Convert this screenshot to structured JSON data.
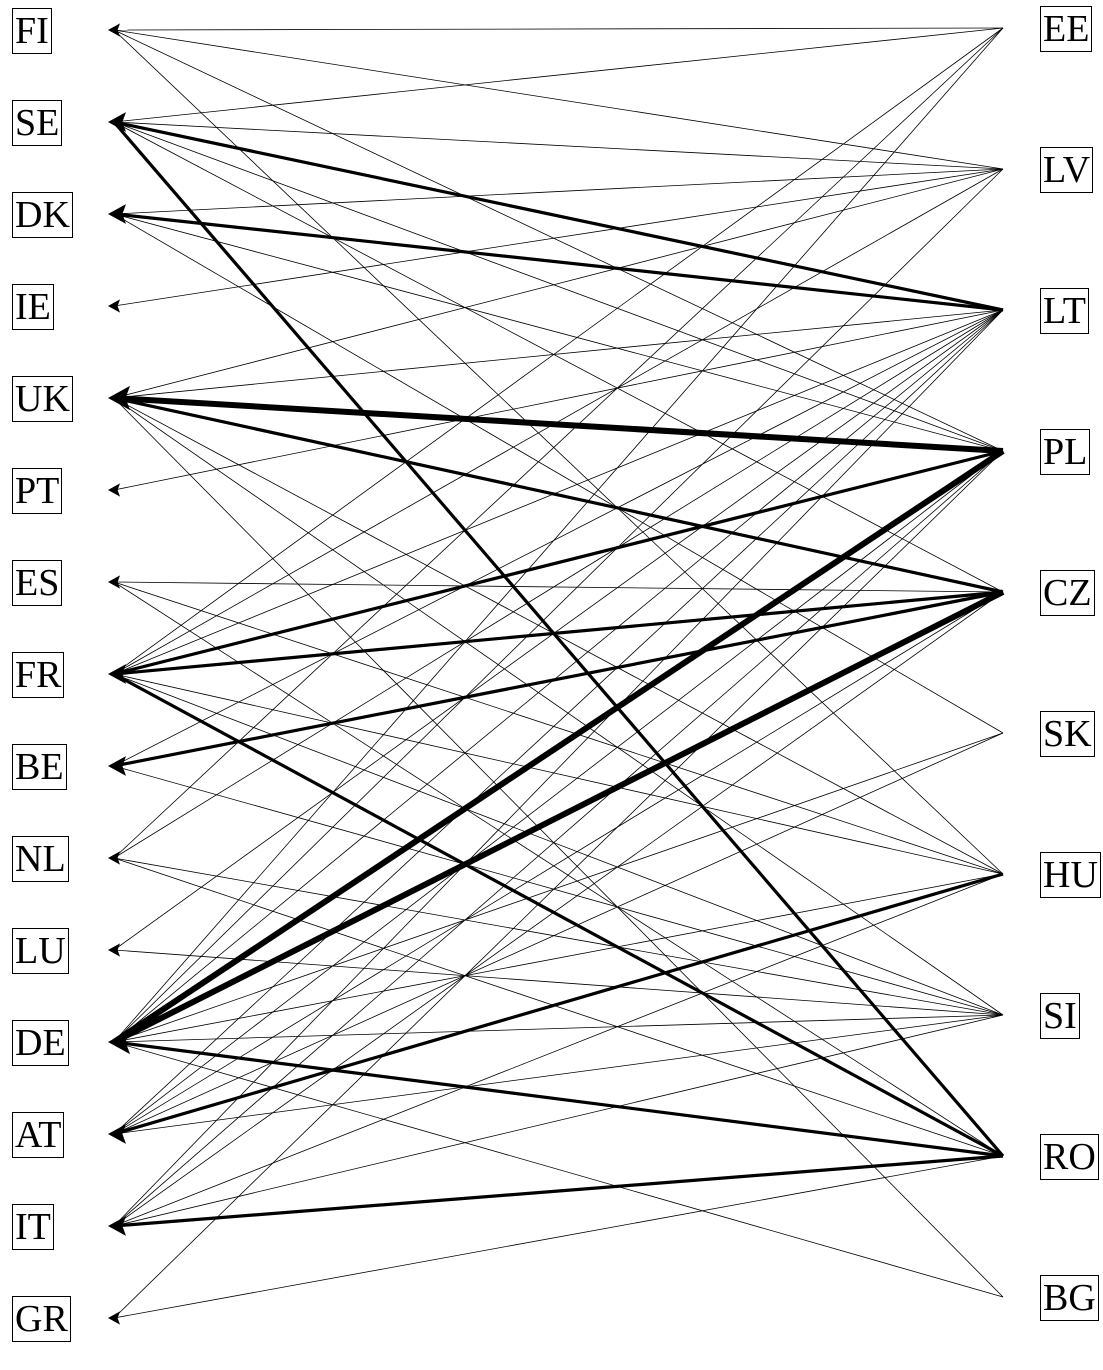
{
  "diagram": {
    "left_nodes": [
      {
        "id": "FI",
        "label": "FI"
      },
      {
        "id": "SE",
        "label": "SE"
      },
      {
        "id": "DK",
        "label": "DK"
      },
      {
        "id": "IE",
        "label": "IE"
      },
      {
        "id": "UK",
        "label": "UK"
      },
      {
        "id": "PT",
        "label": "PT"
      },
      {
        "id": "ES",
        "label": "ES"
      },
      {
        "id": "FR",
        "label": "FR"
      },
      {
        "id": "BE",
        "label": "BE"
      },
      {
        "id": "NL",
        "label": "NL"
      },
      {
        "id": "LU",
        "label": "LU"
      },
      {
        "id": "DE",
        "label": "DE"
      },
      {
        "id": "AT",
        "label": "AT"
      },
      {
        "id": "IT",
        "label": "IT"
      },
      {
        "id": "GR",
        "label": "GR"
      }
    ],
    "right_nodes": [
      {
        "id": "EE",
        "label": "EE"
      },
      {
        "id": "LV",
        "label": "LV"
      },
      {
        "id": "LT",
        "label": "LT"
      },
      {
        "id": "PL",
        "label": "PL"
      },
      {
        "id": "CZ",
        "label": "CZ"
      },
      {
        "id": "SK",
        "label": "SK"
      },
      {
        "id": "HU",
        "label": "HU"
      },
      {
        "id": "SI",
        "label": "SI"
      },
      {
        "id": "RO",
        "label": "RO"
      },
      {
        "id": "BG",
        "label": "BG"
      }
    ],
    "edges": [
      {
        "from": "EE",
        "to": "FI",
        "weight": 1
      },
      {
        "from": "EE",
        "to": "SE",
        "weight": 1
      },
      {
        "from": "EE",
        "to": "FR",
        "weight": 1
      },
      {
        "from": "EE",
        "to": "NL",
        "weight": 1
      },
      {
        "from": "EE",
        "to": "DE",
        "weight": 1
      },
      {
        "from": "LV",
        "to": "FI",
        "weight": 1
      },
      {
        "from": "LV",
        "to": "SE",
        "weight": 1
      },
      {
        "from": "LV",
        "to": "DK",
        "weight": 1
      },
      {
        "from": "LV",
        "to": "IE",
        "weight": 1
      },
      {
        "from": "LV",
        "to": "UK",
        "weight": 1
      },
      {
        "from": "LV",
        "to": "FR",
        "weight": 1
      },
      {
        "from": "LV",
        "to": "DE",
        "weight": 1
      },
      {
        "from": "LT",
        "to": "SE",
        "weight": 3
      },
      {
        "from": "LT",
        "to": "DK",
        "weight": 3
      },
      {
        "from": "LT",
        "to": "UK",
        "weight": 1
      },
      {
        "from": "LT",
        "to": "PT",
        "weight": 1
      },
      {
        "from": "LT",
        "to": "FR",
        "weight": 1
      },
      {
        "from": "LT",
        "to": "BE",
        "weight": 1
      },
      {
        "from": "LT",
        "to": "NL",
        "weight": 1
      },
      {
        "from": "LT",
        "to": "LU",
        "weight": 1
      },
      {
        "from": "LT",
        "to": "DE",
        "weight": 1
      },
      {
        "from": "LT",
        "to": "AT",
        "weight": 1
      },
      {
        "from": "LT",
        "to": "IT",
        "weight": 1
      },
      {
        "from": "PL",
        "to": "FI",
        "weight": 1
      },
      {
        "from": "PL",
        "to": "SE",
        "weight": 1
      },
      {
        "from": "PL",
        "to": "DK",
        "weight": 1
      },
      {
        "from": "PL",
        "to": "UK",
        "weight": 5
      },
      {
        "from": "PL",
        "to": "FR",
        "weight": 3
      },
      {
        "from": "PL",
        "to": "DE",
        "weight": 5
      },
      {
        "from": "PL",
        "to": "AT",
        "weight": 1
      },
      {
        "from": "PL",
        "to": "IT",
        "weight": 1
      },
      {
        "from": "PL",
        "to": "GR",
        "weight": 1
      },
      {
        "from": "CZ",
        "to": "SE",
        "weight": 1
      },
      {
        "from": "CZ",
        "to": "UK",
        "weight": 3
      },
      {
        "from": "CZ",
        "to": "ES",
        "weight": 1
      },
      {
        "from": "CZ",
        "to": "FR",
        "weight": 3
      },
      {
        "from": "CZ",
        "to": "BE",
        "weight": 3
      },
      {
        "from": "CZ",
        "to": "DE",
        "weight": 5
      },
      {
        "from": "CZ",
        "to": "AT",
        "weight": 1
      },
      {
        "from": "CZ",
        "to": "IT",
        "weight": 1
      },
      {
        "from": "SK",
        "to": "DK",
        "weight": 1
      },
      {
        "from": "SK",
        "to": "DE",
        "weight": 1
      },
      {
        "from": "SK",
        "to": "AT",
        "weight": 1
      },
      {
        "from": "HU",
        "to": "FI",
        "weight": 1
      },
      {
        "from": "HU",
        "to": "UK",
        "weight": 1
      },
      {
        "from": "HU",
        "to": "ES",
        "weight": 1
      },
      {
        "from": "HU",
        "to": "FR",
        "weight": 1
      },
      {
        "from": "HU",
        "to": "DE",
        "weight": 1
      },
      {
        "from": "HU",
        "to": "AT",
        "weight": 3
      },
      {
        "from": "HU",
        "to": "IT",
        "weight": 1
      },
      {
        "from": "SI",
        "to": "UK",
        "weight": 1
      },
      {
        "from": "SI",
        "to": "FR",
        "weight": 1
      },
      {
        "from": "SI",
        "to": "BE",
        "weight": 1
      },
      {
        "from": "SI",
        "to": "NL",
        "weight": 1
      },
      {
        "from": "SI",
        "to": "LU",
        "weight": 1
      },
      {
        "from": "SI",
        "to": "DE",
        "weight": 1
      },
      {
        "from": "SI",
        "to": "AT",
        "weight": 1
      },
      {
        "from": "SI",
        "to": "IT",
        "weight": 1
      },
      {
        "from": "RO",
        "to": "SE",
        "weight": 3
      },
      {
        "from": "RO",
        "to": "ES",
        "weight": 1
      },
      {
        "from": "RO",
        "to": "FR",
        "weight": 3
      },
      {
        "from": "RO",
        "to": "NL",
        "weight": 1
      },
      {
        "from": "RO",
        "to": "DE",
        "weight": 3
      },
      {
        "from": "RO",
        "to": "IT",
        "weight": 3
      },
      {
        "from": "RO",
        "to": "GR",
        "weight": 1
      },
      {
        "from": "BG",
        "to": "UK",
        "weight": 1
      },
      {
        "from": "BG",
        "to": "DE",
        "weight": 1
      }
    ]
  }
}
